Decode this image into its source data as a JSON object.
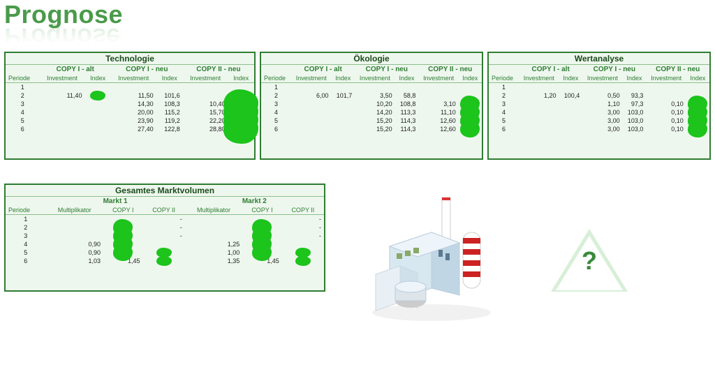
{
  "page_title": "Prognose",
  "title_color": "#4a9a4a",
  "panel_border": "#2e7d32",
  "panel_bg": "#eef7ee",
  "accent": "#2e7d32",
  "blob_color": "#1cc41c",
  "triangle_fill": "#d7efd7",
  "qmark_color": "#3a8a3a",
  "top": {
    "period_label": "Periode",
    "invest_label": "Investment",
    "index_label": "Index",
    "periods": [
      "1",
      "2",
      "3",
      "4",
      "5",
      "6"
    ],
    "sections": [
      {
        "title": "Technologie",
        "groups": [
          {
            "label": "COPY I - alt",
            "invest": [
              "",
              "11,40",
              "",
              "",
              "",
              ""
            ],
            "index": [
              "",
              "",
              "",
              "",
              "",
              ""
            ],
            "blob_rows": [
              1
            ]
          },
          {
            "label": "COPY I - neu",
            "invest": [
              "",
              "11,50",
              "14,30",
              "20,00",
              "23,90",
              "27,40"
            ],
            "index": [
              "",
              "101,6",
              "108,3",
              "115,2",
              "119,2",
              "122,8"
            ],
            "blob_rows": []
          },
          {
            "label": "COPY II - neu",
            "invest": [
              "",
              "",
              "10,40",
              "15,70",
              "22,20",
              "28,80"
            ],
            "index": [
              "",
              "",
              "",
              "",
              "",
              ""
            ],
            "blob_rows": [
              2,
              3,
              4,
              5
            ],
            "blob_type": "big"
          }
        ]
      },
      {
        "title": "Ökologie",
        "groups": [
          {
            "label": "COPY I - alt",
            "invest": [
              "",
              "6,00",
              "",
              "",
              "",
              ""
            ],
            "index": [
              "",
              "101,7",
              "",
              "",
              "",
              ""
            ],
            "blob_rows": []
          },
          {
            "label": "COPY I - neu",
            "invest": [
              "",
              "3,50",
              "10,20",
              "14,20",
              "15,20",
              "15,20"
            ],
            "index": [
              "",
              "58,8",
              "108,8",
              "113,3",
              "114,3",
              "114,3"
            ],
            "blob_rows": []
          },
          {
            "label": "COPY II - neu",
            "invest": [
              "",
              "",
              "3,10",
              "11,10",
              "12,60",
              "12,60"
            ],
            "index": [
              "",
              "",
              "",
              "",
              "",
              ""
            ],
            "blob_rows": [
              2,
              3,
              4,
              5
            ],
            "blob_type": "med"
          }
        ]
      },
      {
        "title": "Wertanalyse",
        "groups": [
          {
            "label": "COPY I - alt",
            "invest": [
              "",
              "1,20",
              "",
              "",
              "",
              ""
            ],
            "index": [
              "",
              "100,4",
              "",
              "",
              "",
              ""
            ],
            "blob_rows": []
          },
          {
            "label": "COPY I - neu",
            "invest": [
              "",
              "0,50",
              "1,10",
              "3,00",
              "3,00",
              "3,00"
            ],
            "index": [
              "",
              "93,3",
              "97,3",
              "103,0",
              "103,0",
              "103,0"
            ],
            "blob_rows": []
          },
          {
            "label": "COPY II - neu",
            "invest": [
              "",
              "",
              "0,10",
              "0,10",
              "0,10",
              "0,10"
            ],
            "index": [
              "",
              "",
              "",
              "",
              "",
              ""
            ],
            "blob_rows": [
              2,
              3,
              4,
              5
            ],
            "blob_type": "med"
          }
        ]
      }
    ]
  },
  "bottom": {
    "title": "Gesamtes Marktvolumen",
    "period_label": "Periode",
    "mult_label": "Multiplikator",
    "c1_label": "COPY I",
    "c2_label": "COPY II",
    "periods": [
      "1",
      "2",
      "3",
      "4",
      "5",
      "6"
    ],
    "markets": [
      {
        "label": "Markt 1",
        "mult": [
          "",
          "",
          "",
          "0,90",
          "0,90",
          "1,03"
        ],
        "c1": [
          "",
          "",
          "",
          "",
          "",
          "1,45"
        ],
        "c2": [
          "-",
          "-",
          "-",
          "",
          "",
          ""
        ],
        "blob_c1": [
          1,
          2,
          3,
          4
        ],
        "blob_c2": [
          4,
          5
        ]
      },
      {
        "label": "Markt 2",
        "mult": [
          "",
          "",
          "",
          "1,25",
          "1,00",
          "1,35"
        ],
        "c1": [
          "",
          "",
          "",
          "",
          "",
          "1,45"
        ],
        "c2": [
          "-",
          "-",
          "-",
          "",
          "",
          ""
        ],
        "blob_c1": [
          1,
          2,
          3,
          4
        ],
        "blob_c2": [
          4,
          5
        ]
      }
    ]
  }
}
